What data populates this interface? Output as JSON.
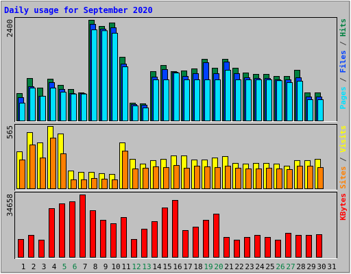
{
  "chart_data": {
    "type": "bar",
    "title": "Daily usage for September 2020",
    "categories": [
      "1",
      "2",
      "3",
      "4",
      "5",
      "6",
      "7",
      "8",
      "9",
      "10",
      "11",
      "12",
      "13",
      "14",
      "15",
      "16",
      "17",
      "18",
      "19",
      "20",
      "21",
      "22",
      "23",
      "24",
      "25",
      "26",
      "27",
      "28",
      "29",
      "30",
      "31"
    ],
    "category_colors": [
      "#000000",
      "#000000",
      "#000000",
      "#000000",
      "#008040",
      "#008040",
      "#000000",
      "#000000",
      "#000000",
      "#000000",
      "#000000",
      "#008040",
      "#008040",
      "#000000",
      "#000000",
      "#000000",
      "#000000",
      "#000000",
      "#008040",
      "#008040",
      "#000000",
      "#000000",
      "#000000",
      "#000000",
      "#000000",
      "#008040",
      "#008040",
      "#000000",
      "#000000",
      "#000000",
      "#000000"
    ],
    "panels": [
      {
        "type": "bar",
        "ylim": [
          0,
          2400
        ],
        "yticks": [
          2400
        ],
        "series": [
          {
            "name": "Hits",
            "color": "#008040",
            "values": [
              653,
              1012,
              784,
              996,
              849,
              751,
              669,
              2400,
              2253,
              2335,
              1518,
              424,
              408,
              1176,
              1322,
              1176,
              1192,
              1241,
              1469,
              1257,
              1469,
              1257,
              1143,
              1110,
              1110,
              1061,
              1061,
              1208,
              669,
              669,
              null
            ]
          },
          {
            "name": "Files",
            "color": "#0040ff",
            "values": [
              555,
              816,
              588,
              914,
              751,
              653,
              653,
              2302,
              2188,
              2220,
              1355,
              392,
              375,
              1045,
              1224,
              1160,
              1061,
              1127,
              1388,
              1127,
              1404,
              1127,
              1029,
              1012,
              1012,
              980,
              980,
              1029,
              571,
              571,
              null
            ]
          },
          {
            "name": "Pages",
            "color": "#00e0ff",
            "values": [
              424,
              784,
              588,
              784,
              686,
              640,
              640,
              2171,
              2150,
              2090,
              1290,
              359,
              310,
              980,
              980,
              1143,
              980,
              980,
              980,
              980,
              1208,
              980,
              980,
              980,
              980,
              960,
              914,
              947,
              506,
              506,
              null
            ]
          }
        ]
      },
      {
        "type": "bar",
        "ylim": [
          0,
          565
        ],
        "yticks": [
          565
        ],
        "series": [
          {
            "name": "Visits",
            "color": "#ffff00",
            "values": [
              335,
              509,
              416,
              565,
              497,
              161,
              149,
              149,
              137,
              130,
              416,
              267,
              224,
              255,
              267,
              298,
              298,
              261,
              261,
              279,
              292,
              230,
              224,
              230,
              230,
              224,
              205,
              255,
              255,
              267,
              null
            ]
          },
          {
            "name": "Sites",
            "color": "#ff8000",
            "values": [
              261,
              397,
              279,
              459,
              317,
              81,
              81,
              93,
              87,
              81,
              341,
              180,
              186,
              199,
              192,
              211,
              186,
              205,
              199,
              192,
              205,
              186,
              180,
              180,
              186,
              180,
              174,
              205,
              205,
              192,
              null
            ]
          }
        ]
      },
      {
        "type": "bar",
        "ylim": [
          0,
          34658
        ],
        "yticks": [
          34658
        ],
        "series": [
          {
            "name": "KBytes",
            "color": "#ff0000",
            "values": [
              9902,
              12187,
              9521,
              27041,
              29707,
              30850,
              34658,
              25898,
              20566,
              18662,
              22090,
              9902,
              15615,
              19804,
              27422,
              31611,
              14853,
              16758,
              20566,
              23994,
              11045,
              9521,
              11045,
              12187,
              11045,
              9521,
              13330,
              12187,
              12187,
              12568,
              null
            ]
          }
        ]
      }
    ]
  }
}
